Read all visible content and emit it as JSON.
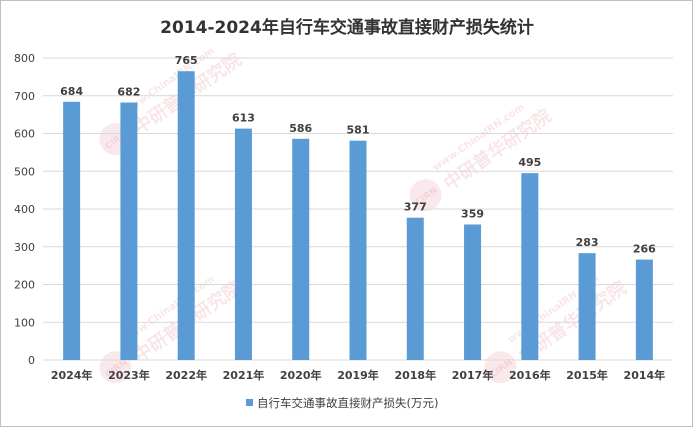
{
  "chart_data": {
    "type": "bar",
    "title": "2014-2024年自行车交通事故直接财产损失统计",
    "categories": [
      "2024年",
      "2023年",
      "2022年",
      "2021年",
      "2020年",
      "2019年",
      "2018年",
      "2017年",
      "2016年",
      "2015年",
      "2014年"
    ],
    "series": [
      {
        "name": "自行车交通事故直接财产损失(万元)",
        "values": [
          684,
          682,
          765,
          613,
          586,
          581,
          377,
          359,
          495,
          283,
          266
        ],
        "color": "#5b9bd5"
      }
    ],
    "yticks": [
      0,
      100,
      200,
      300,
      400,
      500,
      600,
      700,
      800
    ],
    "ylim": [
      0,
      800
    ],
    "grid": true,
    "legend_position": "bottom",
    "data_labels": true,
    "watermark": {
      "url": "www.ChinaIRN.com",
      "name": "中研普华研究院",
      "logo": "CIRN"
    }
  }
}
